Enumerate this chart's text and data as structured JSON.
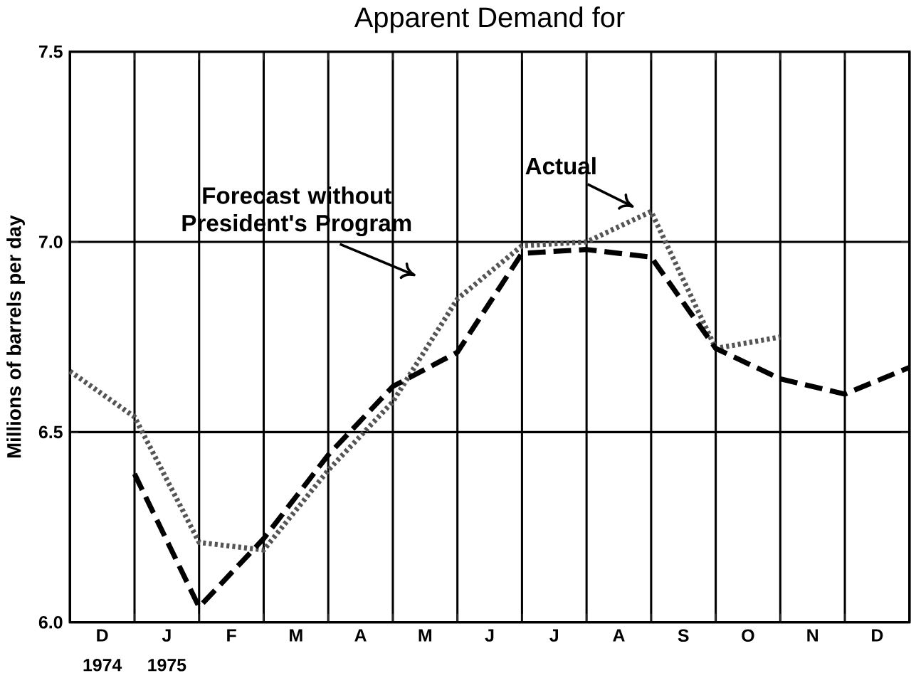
{
  "chart_data": {
    "type": "line",
    "title": "Apparent Demand for",
    "ylabel": "Millions of barrels per day",
    "categories": [
      null,
      "D",
      null,
      "J",
      null,
      "F",
      null,
      "M",
      null,
      "A",
      null,
      "M",
      null,
      "J",
      null,
      "J",
      null,
      "A",
      null,
      "S",
      null,
      "O",
      null,
      "N",
      null,
      "D",
      null
    ],
    "ylim": [
      6.0,
      7.5
    ],
    "yticks": [
      {
        "value": 6.0,
        "label": "6.0"
      },
      {
        "value": 6.5,
        "label": "6.5"
      },
      {
        "value": 7.0,
        "label": "7.0"
      },
      {
        "value": 7.5,
        "label": "7.5"
      }
    ],
    "grid": true,
    "marker": "none",
    "series": [
      {
        "color": "#555555",
        "line_style": "dotted",
        "values": [
          6.66,
          null,
          6.54,
          null,
          6.21,
          null,
          6.19,
          null,
          6.4,
          null,
          6.58,
          null,
          6.85,
          null,
          6.99,
          null,
          7.0,
          null,
          7.08,
          null,
          6.72,
          null,
          6.75,
          null,
          null,
          null,
          null
        ]
      },
      {
        "color": "#000000",
        "line_style": "dashed",
        "values": [
          null,
          null,
          6.39,
          null,
          6.04,
          null,
          6.22,
          null,
          6.44,
          null,
          6.62,
          null,
          6.71,
          null,
          6.97,
          null,
          6.98,
          null,
          6.96,
          null,
          6.72,
          null,
          6.64,
          null,
          6.6,
          null,
          6.67
        ]
      }
    ],
    "annotations": [
      "Actual",
      "Forecast without President's Program",
      "1974",
      "1975"
    ]
  }
}
